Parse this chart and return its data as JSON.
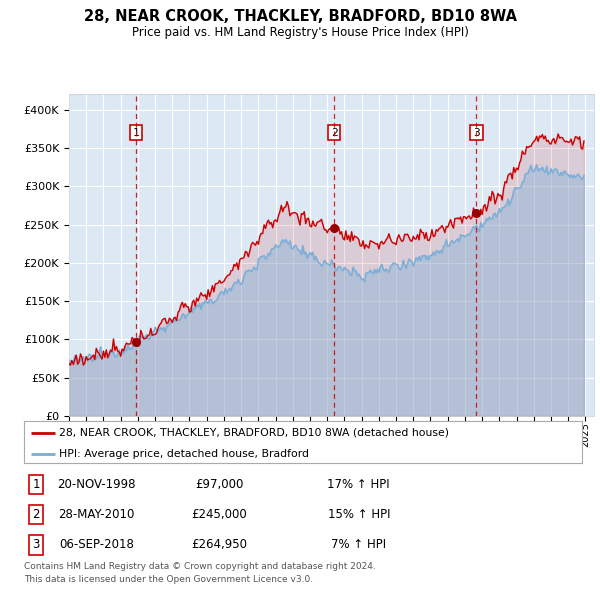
{
  "title": "28, NEAR CROOK, THACKLEY, BRADFORD, BD10 8WA",
  "subtitle": "Price paid vs. HM Land Registry's House Price Index (HPI)",
  "legend_line1": "28, NEAR CROOK, THACKLEY, BRADFORD, BD10 8WA (detached house)",
  "legend_line2": "HPI: Average price, detached house, Bradford",
  "sale_labels": [
    "1",
    "2",
    "3"
  ],
  "sale_dates": [
    "20-NOV-1998",
    "28-MAY-2010",
    "06-SEP-2018"
  ],
  "sale_prices": [
    97000,
    245000,
    264950
  ],
  "sale_hpi_pct": [
    "17% ↑ HPI",
    "15% ↑ HPI",
    "7% ↑ HPI"
  ],
  "sale_years": [
    1998.88,
    2010.41,
    2018.67
  ],
  "ylim": [
    0,
    420000
  ],
  "xlim_start": 1995.0,
  "xlim_end": 2025.5,
  "yticks": [
    0,
    50000,
    100000,
    150000,
    200000,
    250000,
    300000,
    350000,
    400000
  ],
  "ytick_labels": [
    "£0",
    "£50K",
    "£100K",
    "£150K",
    "£200K",
    "£250K",
    "£300K",
    "£350K",
    "£400K"
  ],
  "footer1": "Contains HM Land Registry data © Crown copyright and database right 2024.",
  "footer2": "This data is licensed under the Open Government Licence v3.0.",
  "plot_bg": "#dce9f5",
  "red_color": "#cc0000",
  "blue_color": "#7aaed6",
  "grid_color": "#ffffff"
}
